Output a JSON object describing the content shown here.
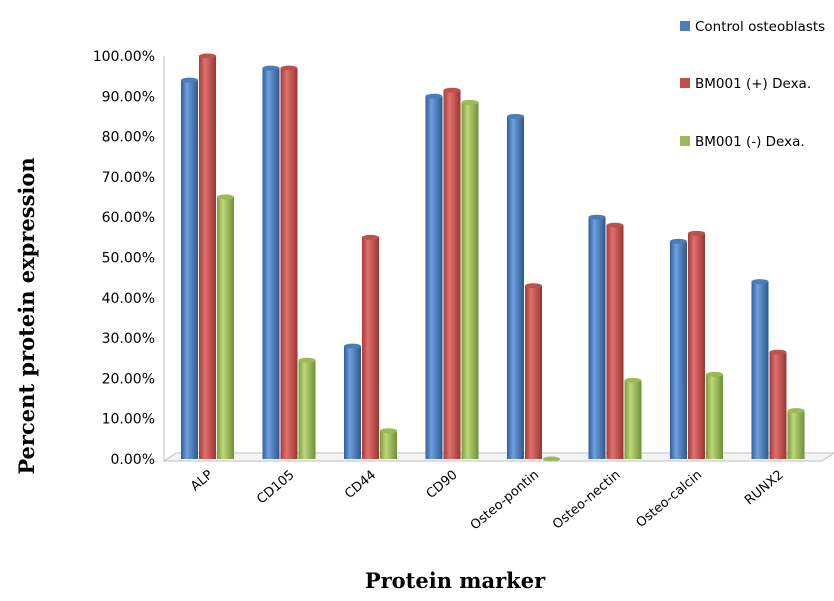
{
  "chart_data": {
    "type": "bar",
    "title": "",
    "xlabel": "Protein marker",
    "ylabel": "Percent protein expression",
    "categories": [
      "ALP",
      "CD105",
      "CD44",
      "CD90",
      "Osteo-pontin",
      "Osteo-nectin",
      "Osteo-calcin",
      "RUNX2"
    ],
    "ylim": [
      0,
      100
    ],
    "yticks": [
      "0.00%",
      "10.00%",
      "20.00%",
      "30.00%",
      "40.00%",
      "50.00%",
      "60.00%",
      "70.00%",
      "80.00%",
      "90.00%",
      "100.00%"
    ],
    "grid": false,
    "legend_position": "top-right",
    "series": [
      {
        "name": "Control osteoblasts",
        "color": "#4a7ebb",
        "values": [
          94,
          97,
          28,
          90,
          85,
          60,
          54,
          44
        ]
      },
      {
        "name": "BM001 (+) Dexa.",
        "color": "#c0504d",
        "values": [
          100,
          97,
          55,
          91.5,
          43,
          58,
          56,
          26.5
        ]
      },
      {
        "name": "BM001 (-) Dexa.",
        "color": "#9bbb59",
        "values": [
          65,
          24.5,
          7,
          88.5,
          0,
          19.5,
          21,
          12
        ]
      }
    ]
  }
}
